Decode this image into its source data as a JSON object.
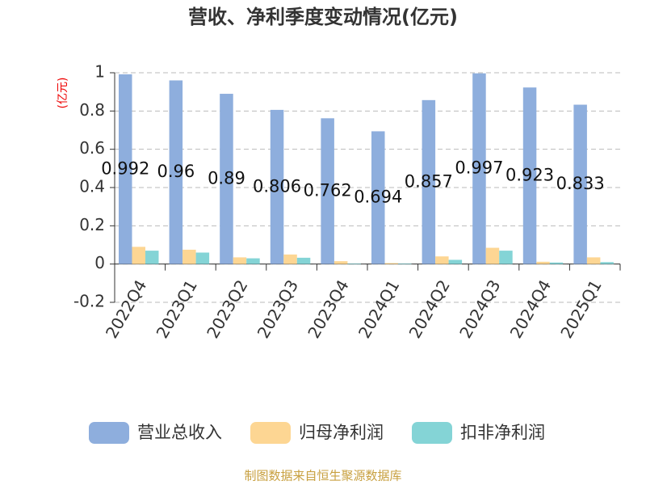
{
  "chart_data": {
    "type": "bar",
    "title": "营收、净利季度变动情况(亿元)",
    "y_label": "(亿元)",
    "source": "制图数据来自恒生聚源数据库",
    "categories": [
      "2022Q4",
      "2023Q1",
      "2023Q2",
      "2023Q3",
      "2023Q4",
      "2024Q1",
      "2024Q2",
      "2024Q3",
      "2024Q4",
      "2025Q1"
    ],
    "series": [
      {
        "name": "营业总收入",
        "color": "#8eaedd",
        "values": [
          0.992,
          0.96,
          0.89,
          0.806,
          0.762,
          0.694,
          0.857,
          0.997,
          0.923,
          0.833
        ],
        "show_labels": true
      },
      {
        "name": "归母净利润",
        "color": "#fdd693",
        "values": [
          0.09,
          0.075,
          0.035,
          0.05,
          0.015,
          0.005,
          0.04,
          0.085,
          0.012,
          0.035
        ]
      },
      {
        "name": "扣非净利润",
        "color": "#84d4d6",
        "values": [
          0.07,
          0.06,
          0.03,
          0.033,
          0.003,
          0.003,
          0.022,
          0.07,
          0.008,
          0.01
        ]
      }
    ],
    "ylim": [
      -0.2,
      1
    ],
    "yticks": [
      -0.2,
      0,
      0.2,
      0.4,
      0.6,
      0.8,
      1
    ],
    "grid": true,
    "legend": "bottom"
  }
}
